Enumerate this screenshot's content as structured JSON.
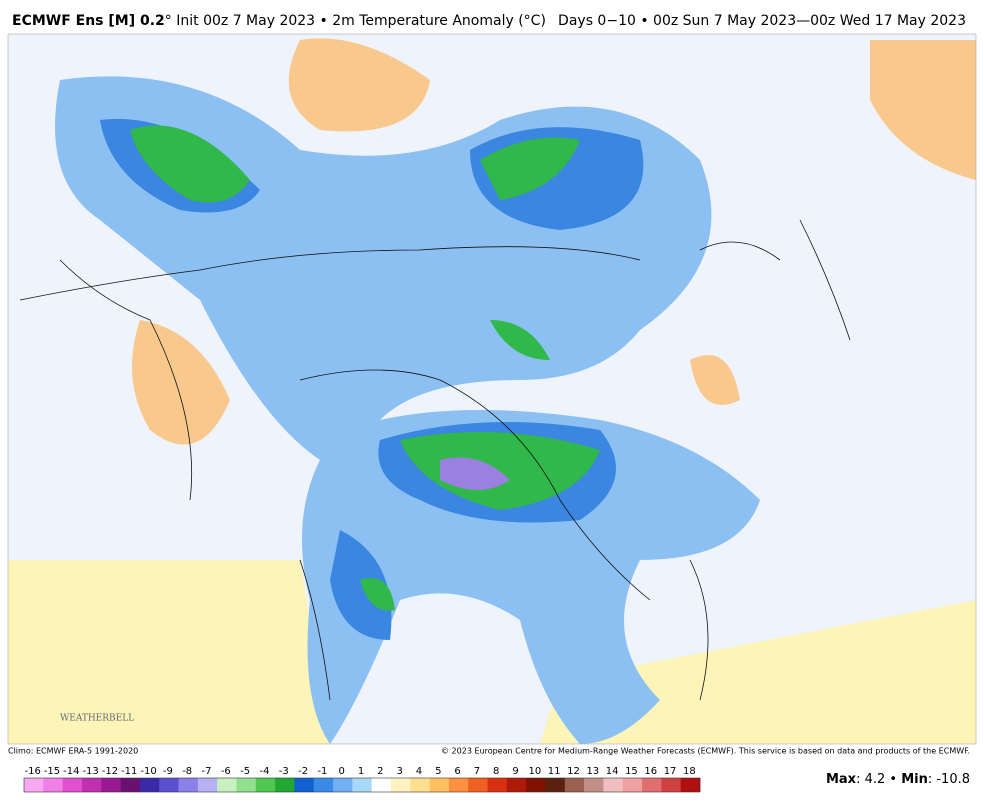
{
  "header": {
    "title_bold": "ECMWF Ens [M] 0.2",
    "title_rest": "° Init 00z 7 May 2023 • 2m Temperature Anomaly (°C)",
    "period": "Days 0−10 • 00z Sun 7 May 2023—00z Wed 17 May 2023"
  },
  "map": {
    "logo": "WEATHERBELL"
  },
  "footer": {
    "climo": "Climo: ECMWF ERA-5 1991-2020",
    "copyright": "© 2023 European Centre for Medium-Range Weather Forecasts (ECMWF). This service is based on data and products of the ECMWF."
  },
  "colorbar": {
    "labels": [
      "-16",
      "-15",
      "-14",
      "-13",
      "-12",
      "-11",
      "-10",
      "-9",
      "-8",
      "-7",
      "-6",
      "-5",
      "-4",
      "-3",
      "-2",
      "-1",
      "0",
      "1",
      "2",
      "3",
      "4",
      "5",
      "6",
      "7",
      "8",
      "9",
      "10",
      "11",
      "12",
      "13",
      "14",
      "15",
      "16",
      "17",
      "18"
    ],
    "colors": [
      "#f7a8f0",
      "#f080e6",
      "#e050d0",
      "#c030b0",
      "#9a1890",
      "#6a1070",
      "#3a2aa8",
      "#5a50d0",
      "#8a80e8",
      "#b8b0f4",
      "#c8f0c0",
      "#90e090",
      "#50c850",
      "#20a830",
      "#1060d0",
      "#3a8ae8",
      "#70b0f0",
      "#a8d8f8",
      "#ffffff",
      "#fff4c0",
      "#ffe090",
      "#ffc060",
      "#ff9040",
      "#f06020",
      "#d83010",
      "#b01808",
      "#801000",
      "#5a2010",
      "#9a6050",
      "#c09088",
      "#f0c0c0",
      "#f0a0a0",
      "#e07070",
      "#d04040",
      "#b01010"
    ]
  },
  "stats": {
    "max_label": "Max",
    "max_text": ": 4.2 • ",
    "min_label": "Min",
    "min_text": ": -10.8"
  }
}
